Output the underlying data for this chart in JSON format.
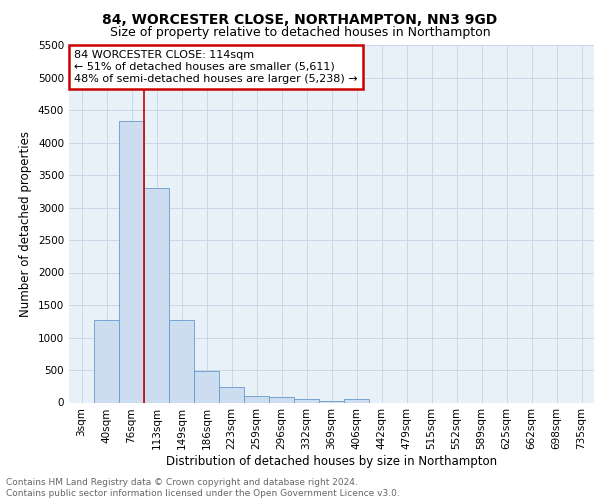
{
  "title": "84, WORCESTER CLOSE, NORTHAMPTON, NN3 9GD",
  "subtitle": "Size of property relative to detached houses in Northampton",
  "xlabel": "Distribution of detached houses by size in Northampton",
  "ylabel": "Number of detached properties",
  "categories": [
    "3sqm",
    "40sqm",
    "76sqm",
    "113sqm",
    "149sqm",
    "186sqm",
    "223sqm",
    "259sqm",
    "296sqm",
    "332sqm",
    "369sqm",
    "406sqm",
    "442sqm",
    "479sqm",
    "515sqm",
    "552sqm",
    "589sqm",
    "625sqm",
    "662sqm",
    "698sqm",
    "735sqm"
  ],
  "values": [
    0,
    1270,
    4330,
    3300,
    1270,
    480,
    240,
    95,
    85,
    50,
    30,
    55,
    0,
    0,
    0,
    0,
    0,
    0,
    0,
    0,
    0
  ],
  "bar_color": "#ccddf0",
  "bar_edge_color": "#6699cc",
  "red_line_x": 2.5,
  "annotation_line1": "84 WORCESTER CLOSE: 114sqm",
  "annotation_line2": "← 51% of detached houses are smaller (5,611)",
  "annotation_line3": "48% of semi-detached houses are larger (5,238) →",
  "annotation_box_color": "#ffffff",
  "annotation_box_edge_color": "#cc0000",
  "ylim": [
    0,
    5500
  ],
  "yticks": [
    0,
    500,
    1000,
    1500,
    2000,
    2500,
    3000,
    3500,
    4000,
    4500,
    5000,
    5500
  ],
  "grid_color": "#c8d8e8",
  "bg_color": "#e8f0f8",
  "footer_line1": "Contains HM Land Registry data © Crown copyright and database right 2024.",
  "footer_line2": "Contains public sector information licensed under the Open Government Licence v3.0.",
  "title_fontsize": 10,
  "subtitle_fontsize": 9,
  "xlabel_fontsize": 8.5,
  "ylabel_fontsize": 8.5,
  "tick_fontsize": 7.5,
  "annotation_fontsize": 8,
  "footer_fontsize": 6.5
}
